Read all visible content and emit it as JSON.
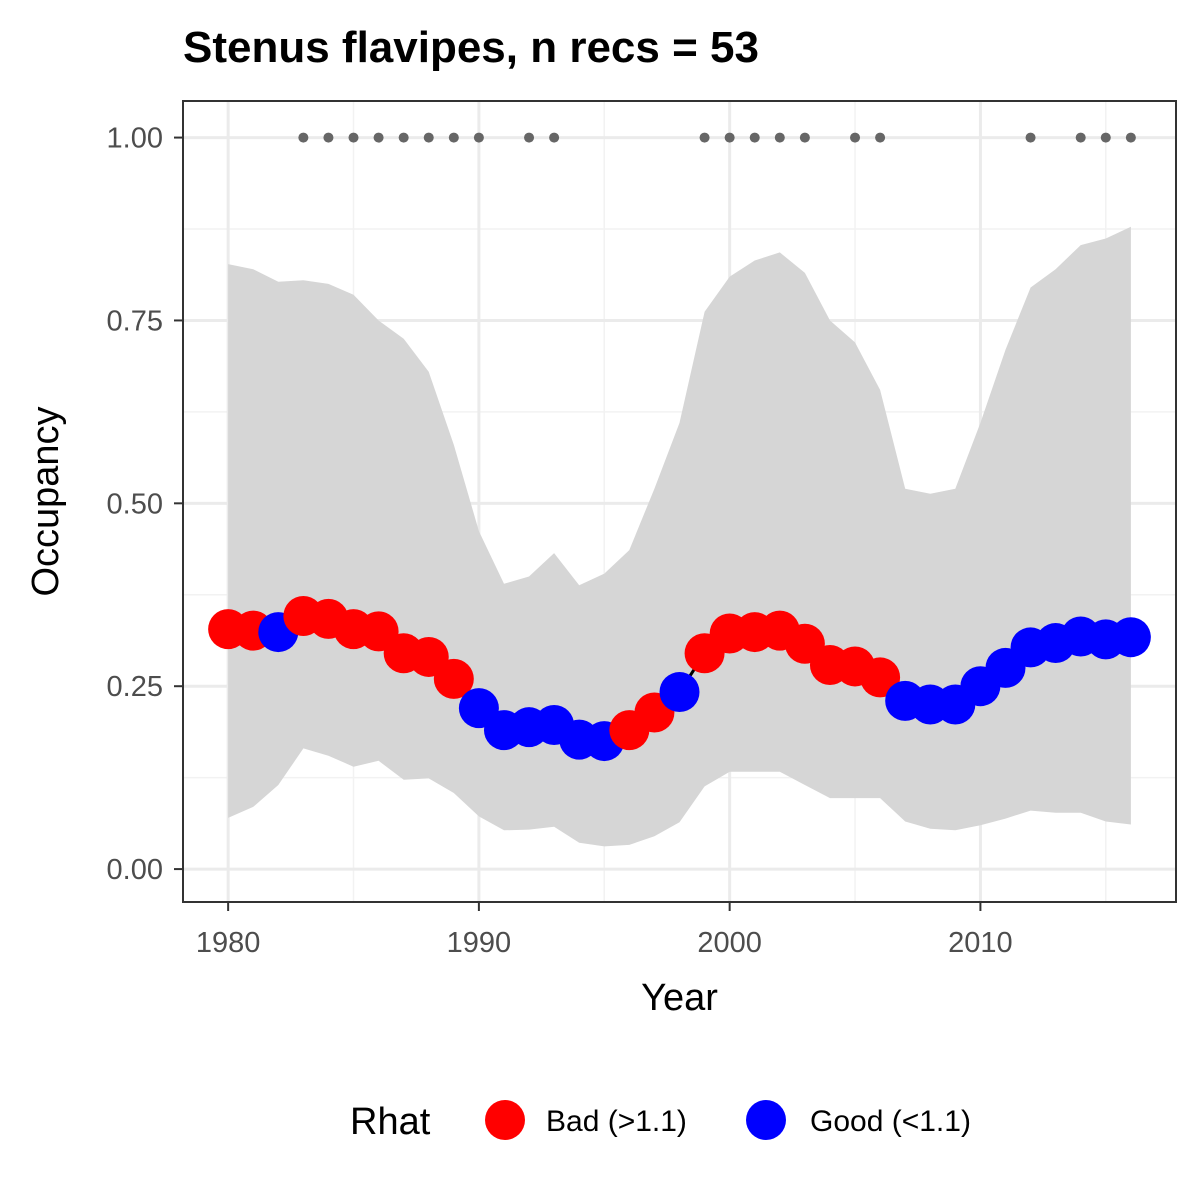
{
  "chart_data": {
    "type": "scatter",
    "title": "Stenus flavipes, n recs = 53",
    "xlabel": "Year",
    "ylabel": "Occupancy",
    "xlim": [
      1978.2,
      2017.8
    ],
    "ylim": [
      -0.045,
      1.05
    ],
    "x_ticks": [
      1980,
      1990,
      2000,
      2010
    ],
    "x_tick_labels": [
      "1980",
      "1990",
      "2000",
      "2010"
    ],
    "y_ticks": [
      0,
      0.25,
      0.5,
      0.75,
      1.0
    ],
    "y_tick_labels": [
      "0.00",
      "0.25",
      "0.50",
      "0.75",
      "1.00"
    ],
    "x_minor": [
      1985,
      1995,
      2005,
      2015
    ],
    "y_minor": [
      0.125,
      0.375,
      0.625,
      0.875
    ],
    "grid": true,
    "years": [
      1980,
      1981,
      1982,
      1983,
      1984,
      1985,
      1986,
      1987,
      1988,
      1989,
      1990,
      1991,
      1992,
      1993,
      1994,
      1995,
      1996,
      1997,
      1998,
      1999,
      2000,
      2001,
      2002,
      2003,
      2004,
      2005,
      2006,
      2007,
      2008,
      2009,
      2010,
      2011,
      2012,
      2013,
      2014,
      2015,
      2016
    ],
    "occupancy": [
      0.328,
      0.326,
      0.324,
      0.346,
      0.342,
      0.328,
      0.325,
      0.295,
      0.29,
      0.26,
      0.22,
      0.19,
      0.194,
      0.197,
      0.177,
      0.175,
      0.19,
      0.214,
      0.242,
      0.295,
      0.322,
      0.324,
      0.326,
      0.308,
      0.279,
      0.277,
      0.262,
      0.23,
      0.225,
      0.225,
      0.25,
      0.275,
      0.303,
      0.309,
      0.318,
      0.314,
      0.317
    ],
    "rhat_status": [
      "bad",
      "bad",
      "good",
      "bad",
      "bad",
      "bad",
      "bad",
      "bad",
      "bad",
      "bad",
      "good",
      "good",
      "good",
      "good",
      "good",
      "good",
      "bad",
      "bad",
      "good",
      "bad",
      "bad",
      "bad",
      "bad",
      "bad",
      "bad",
      "bad",
      "bad",
      "good",
      "good",
      "good",
      "good",
      "good",
      "good",
      "good",
      "good",
      "good",
      "good"
    ],
    "upper_ci": [
      0.827,
      0.82,
      0.803,
      0.805,
      0.8,
      0.785,
      0.75,
      0.725,
      0.68,
      0.58,
      0.462,
      0.39,
      0.4,
      0.432,
      0.388,
      0.404,
      0.436,
      0.52,
      0.61,
      0.762,
      0.81,
      0.832,
      0.843,
      0.815,
      0.75,
      0.72,
      0.655,
      0.52,
      0.513,
      0.52,
      0.61,
      0.71,
      0.795,
      0.82,
      0.853,
      0.862,
      0.878
    ],
    "lower_ci": [
      0.07,
      0.085,
      0.115,
      0.165,
      0.155,
      0.14,
      0.148,
      0.122,
      0.124,
      0.104,
      0.072,
      0.053,
      0.054,
      0.058,
      0.036,
      0.031,
      0.033,
      0.045,
      0.064,
      0.113,
      0.133,
      0.133,
      0.133,
      0.115,
      0.097,
      0.097,
      0.097,
      0.065,
      0.055,
      0.053,
      0.06,
      0.069,
      0.08,
      0.077,
      0.077,
      0.065,
      0.061
    ],
    "record_years": [
      1983,
      1984,
      1985,
      1986,
      1987,
      1988,
      1989,
      1990,
      1992,
      1993,
      1999,
      2000,
      2001,
      2002,
      2003,
      2005,
      2006,
      2012,
      2014,
      2015,
      2016
    ],
    "record_y": 1.0,
    "legend": {
      "title": "Rhat",
      "position": "bottom",
      "items": [
        {
          "key": "bad",
          "label": "Bad (>1.1)",
          "color": "#ff0000"
        },
        {
          "key": "good",
          "label": "Good (<1.1)",
          "color": "#0000ff"
        }
      ]
    },
    "colors": {
      "bad": "#ff0000",
      "good": "#0000ff",
      "ribbon": "#d6d6d6",
      "line": "#000000",
      "record_dots": "#666666"
    }
  }
}
